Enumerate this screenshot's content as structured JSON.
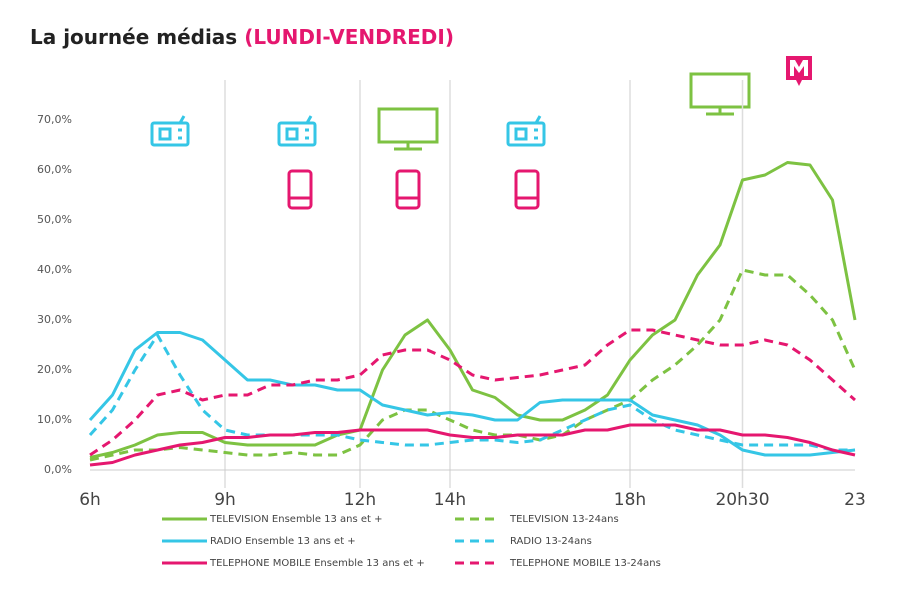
{
  "chart_data": {
    "type": "line",
    "title": "La journée médias",
    "subtitle": "(LUNDI-VENDREDI)",
    "x": [
      6,
      6.5,
      7,
      7.5,
      8,
      8.5,
      9,
      9.5,
      10,
      10.5,
      11,
      11.5,
      12,
      12.5,
      13,
      13.5,
      14,
      14.5,
      15,
      15.5,
      16,
      16.5,
      17,
      17.5,
      18,
      18.5,
      19,
      19.5,
      20,
      20.5,
      21,
      21.5,
      22,
      22.5,
      23
    ],
    "xlim": [
      6,
      23
    ],
    "xticks": [
      {
        "value": 6,
        "label": "6h"
      },
      {
        "value": 9,
        "label": "9h"
      },
      {
        "value": 12,
        "label": "12h"
      },
      {
        "value": 14,
        "label": "14h"
      },
      {
        "value": 18,
        "label": "18h"
      },
      {
        "value": 20.5,
        "label": "20h30"
      },
      23
    ],
    "ylim": [
      0,
      70
    ],
    "yticks": [
      {
        "value": 0,
        "label": "0,0%"
      },
      {
        "value": 10,
        "label": "10,0%"
      },
      {
        "value": 20,
        "label": "20,0%"
      },
      {
        "value": 30,
        "label": "30,0%"
      },
      {
        "value": 40,
        "label": "40,0%"
      },
      {
        "value": 50,
        "label": "50,0%"
      },
      {
        "value": 60,
        "label": "60,0%"
      },
      {
        "value": 70,
        "label": "70,0%"
      }
    ],
    "grid": true,
    "series": [
      {
        "name": "TELEVISION Ensemble 13 ans et +",
        "color": "#7dc242",
        "dashed": false,
        "values": [
          2.5,
          3.5,
          5,
          7,
          7.5,
          7.5,
          5.5,
          5,
          5,
          5,
          5,
          7,
          8,
          20,
          27,
          30,
          24,
          16,
          14.5,
          11,
          10,
          10,
          12,
          15,
          22,
          27,
          30,
          39,
          45,
          58,
          59,
          61.5,
          61,
          54,
          30
        ]
      },
      {
        "name": "TELEVISION 13-24ans",
        "color": "#7dc242",
        "dashed": true,
        "values": [
          2,
          3,
          4,
          4,
          4.5,
          4,
          3.5,
          3,
          3,
          3.5,
          3,
          3,
          5,
          10,
          12,
          12,
          10,
          8,
          7,
          7,
          6,
          7,
          10,
          12,
          14,
          18,
          21,
          25,
          30,
          40,
          39,
          39,
          35,
          30,
          20
        ]
      },
      {
        "name": "RADIO Ensemble 13 ans et +",
        "color": "#35c6e6",
        "dashed": false,
        "values": [
          10,
          15,
          24,
          27.5,
          27.5,
          26,
          22,
          18,
          18,
          17,
          17,
          16,
          16,
          13,
          12,
          11,
          11.5,
          11,
          10,
          10,
          13.5,
          14,
          14,
          14,
          14,
          11,
          10,
          9,
          7,
          4,
          3,
          3,
          3,
          3.5,
          4
        ]
      },
      {
        "name": "RADIO 13-24ans",
        "color": "#35c6e6",
        "dashed": true,
        "values": [
          7,
          12,
          20,
          27,
          19,
          12,
          8,
          7,
          7,
          7,
          7,
          7,
          6,
          5.5,
          5,
          5,
          5.5,
          6,
          6,
          5.5,
          6,
          8,
          10,
          12,
          13,
          10,
          8,
          7,
          6,
          5,
          5,
          5,
          5,
          4,
          4
        ]
      },
      {
        "name": "TELEPHONE MOBILE Ensemble 13 ans et +",
        "color": "#e5176f",
        "dashed": false,
        "values": [
          1,
          1.5,
          3,
          4,
          5,
          5.5,
          6.5,
          6.5,
          7,
          7,
          7.5,
          7.5,
          8,
          8,
          8,
          8,
          7,
          6.5,
          6.5,
          7,
          7,
          7,
          8,
          8,
          9,
          9,
          9,
          8,
          8,
          7,
          7,
          6.5,
          5.5,
          4,
          3
        ]
      },
      {
        "name": "TELEPHONE MOBILE 13-24ans",
        "color": "#e5176f",
        "dashed": true,
        "values": [
          3,
          6,
          10,
          15,
          16,
          14,
          15,
          15,
          17,
          17,
          18,
          18,
          19,
          23,
          24,
          24,
          22,
          19,
          18,
          18.5,
          19,
          20,
          21,
          25,
          28,
          28,
          27,
          26,
          25,
          25,
          26,
          25,
          22,
          18,
          14
        ]
      }
    ]
  }
}
